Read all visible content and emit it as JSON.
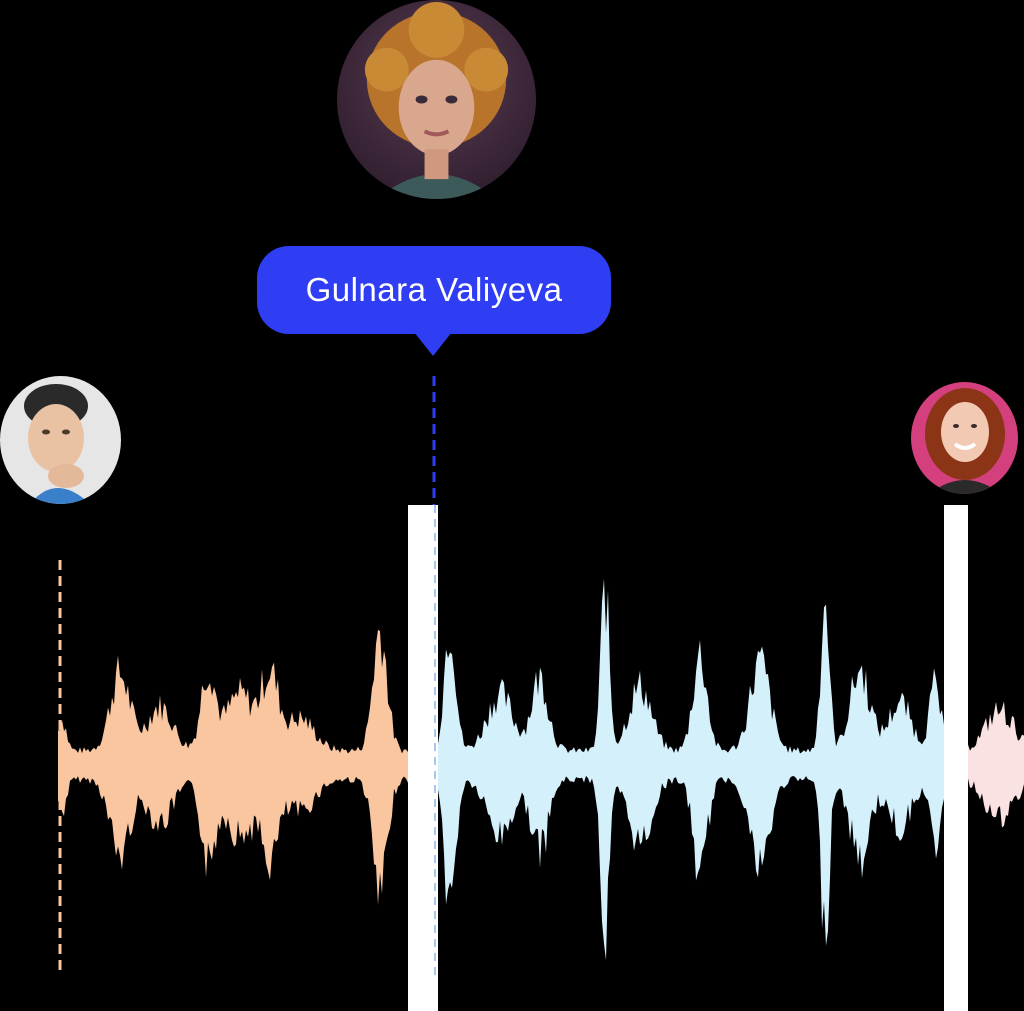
{
  "speaker_label": {
    "name": "Gulnara Valiyeva"
  },
  "speakers": [
    {
      "role": "left",
      "color": "#f9c6a0"
    },
    {
      "role": "center",
      "color": "#d3f0fb"
    },
    {
      "role": "right",
      "color": "#fbe2e2"
    }
  ],
  "colors": {
    "background": "#000000",
    "accent": "#2f3df3",
    "separator": "#ffffff"
  }
}
